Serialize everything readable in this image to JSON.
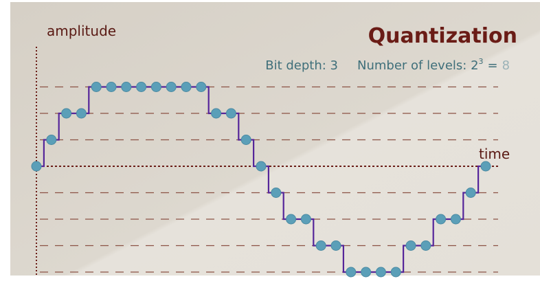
{
  "header": {
    "title": "Quantization"
  },
  "axes": {
    "y_label": "amplitude",
    "x_label": "time"
  },
  "info": {
    "bit_depth": "Bit depth: 3",
    "levels_label": "Number of levels: 2",
    "levels_exponent": "3",
    "levels_equals": "=",
    "levels_result": "8"
  },
  "levels": [
    3,
    2,
    1,
    0,
    -1,
    -2,
    -3,
    -4
  ],
  "samples": [
    0,
    1,
    2,
    2,
    3,
    3,
    3,
    3,
    3,
    3,
    3,
    3,
    2,
    2,
    1,
    0,
    -1,
    -2,
    -2,
    -3,
    -3,
    -4,
    -4,
    -4,
    -4,
    -3,
    -3,
    -2,
    -2,
    -1,
    0
  ]
}
